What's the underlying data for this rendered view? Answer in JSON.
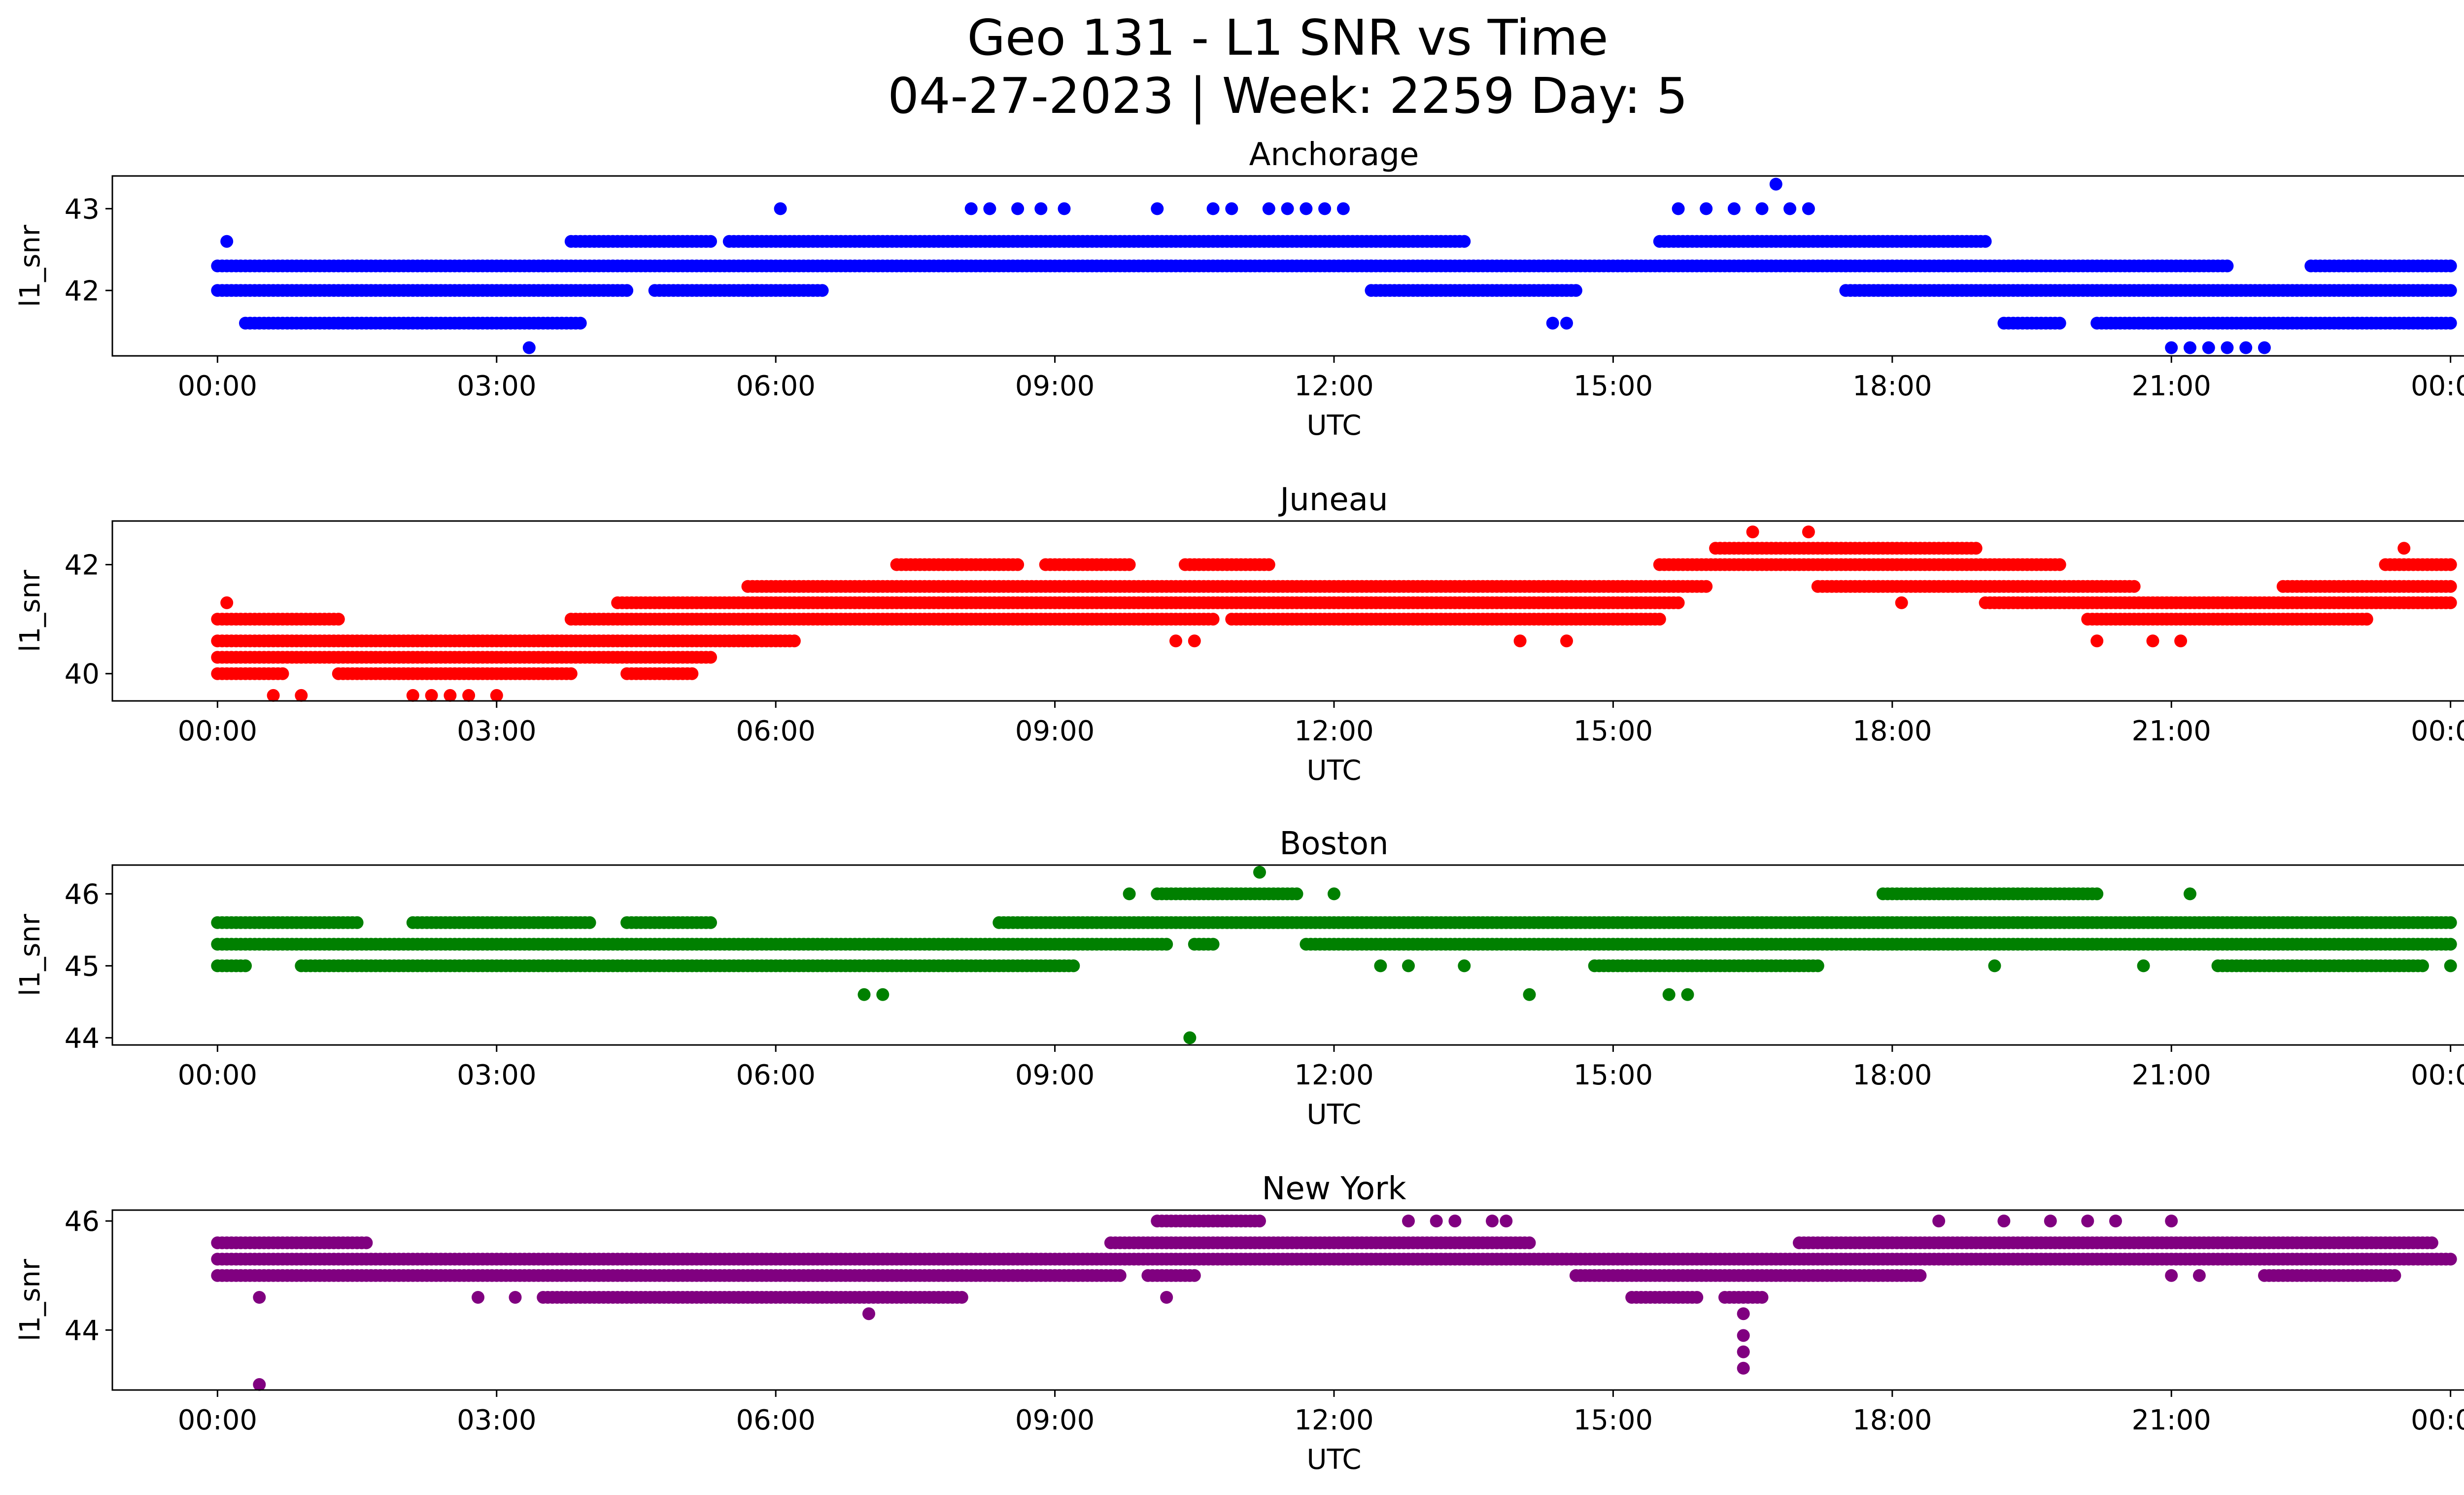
{
  "figure": {
    "title_line1": "Geo 131 - L1 SNR vs Time",
    "title_line2": "04-27-2023 | Week: 2259 Day: 5"
  },
  "chart_data": [
    {
      "type": "scatter",
      "title": "Anchorage",
      "xlabel": "UTC",
      "ylabel": "l1_snr",
      "color": "#0000ff",
      "x_tick_labels": [
        "00:00",
        "03:00",
        "06:00",
        "09:00",
        "12:00",
        "15:00",
        "18:00",
        "21:00",
        "00:00"
      ],
      "x_tick_hours": [
        0,
        3,
        6,
        9,
        12,
        15,
        18,
        21,
        24
      ],
      "xlim_hours": [
        -1.13,
        25.13
      ],
      "yticks": [
        42,
        43
      ],
      "ylim": [
        41.2,
        43.4
      ],
      "levels": [
        41.6,
        42.0,
        42.3,
        42.6
      ],
      "bands": [
        {
          "y": 42.0,
          "ranges": [
            [
              0,
              4.4
            ],
            [
              4.7,
              5.8
            ],
            [
              5.7,
              6.5
            ],
            [
              12.4,
              14.6
            ],
            [
              17.5,
              24
            ]
          ],
          "step": 0.05
        },
        {
          "y": 42.3,
          "ranges": [
            [
              0,
              3.5
            ],
            [
              3.5,
              12.4
            ],
            [
              12.4,
              17.5
            ],
            [
              17.5,
              21.6
            ],
            [
              22.5,
              24
            ]
          ],
          "step": 0.05
        },
        {
          "y": 42.6,
          "ranges": [
            [
              3.8,
              5.3
            ],
            [
              5.5,
              13.4
            ],
            [
              15.5,
              19.0
            ]
          ],
          "step": 0.05
        },
        {
          "y": 41.6,
          "ranges": [
            [
              0.3,
              3.9
            ],
            [
              19.2,
              19.8
            ],
            [
              20.2,
              24
            ]
          ],
          "step": 0.05
        }
      ],
      "sparse_points": [
        {
          "x": 0.1,
          "y": 42.6
        },
        {
          "x": 3.35,
          "y": 41.3
        },
        {
          "x": 6.05,
          "y": 43.0
        },
        {
          "x": 8.1,
          "y": 43.0
        },
        {
          "x": 8.3,
          "y": 43.0
        },
        {
          "x": 8.6,
          "y": 43.0
        },
        {
          "x": 8.85,
          "y": 43.0
        },
        {
          "x": 9.1,
          "y": 43.0
        },
        {
          "x": 10.1,
          "y": 43.0
        },
        {
          "x": 10.7,
          "y": 43.0
        },
        {
          "x": 10.9,
          "y": 43.0
        },
        {
          "x": 11.3,
          "y": 43.0
        },
        {
          "x": 11.5,
          "y": 43.0
        },
        {
          "x": 11.7,
          "y": 43.0
        },
        {
          "x": 11.9,
          "y": 43.0
        },
        {
          "x": 12.1,
          "y": 43.0
        },
        {
          "x": 14.35,
          "y": 41.6
        },
        {
          "x": 14.5,
          "y": 41.6
        },
        {
          "x": 15.7,
          "y": 43.0
        },
        {
          "x": 16.0,
          "y": 43.0
        },
        {
          "x": 16.3,
          "y": 43.0
        },
        {
          "x": 16.6,
          "y": 43.0
        },
        {
          "x": 16.75,
          "y": 43.3
        },
        {
          "x": 16.9,
          "y": 43.0
        },
        {
          "x": 17.1,
          "y": 43.0
        },
        {
          "x": 21.0,
          "y": 41.3
        },
        {
          "x": 21.2,
          "y": 41.3
        },
        {
          "x": 21.4,
          "y": 41.3
        },
        {
          "x": 21.6,
          "y": 41.3
        },
        {
          "x": 21.8,
          "y": 41.3
        },
        {
          "x": 22.0,
          "y": 41.3
        }
      ]
    },
    {
      "type": "scatter",
      "title": "Juneau",
      "xlabel": "UTC",
      "ylabel": "l1_snr",
      "color": "#ff0000",
      "x_tick_labels": [
        "00:00",
        "03:00",
        "06:00",
        "09:00",
        "12:00",
        "15:00",
        "18:00",
        "21:00",
        "00:00"
      ],
      "x_tick_hours": [
        0,
        3,
        6,
        9,
        12,
        15,
        18,
        21,
        24
      ],
      "xlim_hours": [
        -1.13,
        25.13
      ],
      "yticks": [
        40,
        42
      ],
      "ylim": [
        39.5,
        42.8
      ],
      "bands": [
        {
          "y": 40.0,
          "ranges": [
            [
              0,
              0.7
            ],
            [
              1.3,
              3.8
            ],
            [
              4.4,
              5.1
            ]
          ],
          "step": 0.05
        },
        {
          "y": 40.3,
          "ranges": [
            [
              0,
              5.3
            ]
          ],
          "step": 0.05
        },
        {
          "y": 40.6,
          "ranges": [
            [
              0,
              6.2
            ]
          ],
          "step": 0.05
        },
        {
          "y": 41.0,
          "ranges": [
            [
              0,
              1.3
            ],
            [
              3.8,
              10.7
            ],
            [
              10.9,
              15.5
            ],
            [
              20.1,
              23.1
            ]
          ],
          "step": 0.05
        },
        {
          "y": 41.3,
          "ranges": [
            [
              4.3,
              15.7
            ],
            [
              19.0,
              24
            ]
          ],
          "step": 0.05
        },
        {
          "y": 41.6,
          "ranges": [
            [
              5.7,
              16.0
            ],
            [
              17.2,
              20.6
            ],
            [
              22.2,
              24
            ]
          ],
          "step": 0.05
        },
        {
          "y": 42.0,
          "ranges": [
            [
              7.3,
              8.6
            ],
            [
              8.9,
              9.8
            ],
            [
              10.4,
              11.3
            ],
            [
              15.5,
              19.8
            ],
            [
              23.3,
              24
            ]
          ],
          "step": 0.05
        },
        {
          "y": 42.3,
          "ranges": [
            [
              16.1,
              18.9
            ]
          ],
          "step": 0.05
        }
      ],
      "sparse_points": [
        {
          "x": 0.1,
          "y": 41.3
        },
        {
          "x": 0.6,
          "y": 39.6
        },
        {
          "x": 0.9,
          "y": 39.6
        },
        {
          "x": 2.1,
          "y": 39.6
        },
        {
          "x": 2.3,
          "y": 39.6
        },
        {
          "x": 2.5,
          "y": 39.6
        },
        {
          "x": 2.7,
          "y": 39.6
        },
        {
          "x": 3.0,
          "y": 39.6
        },
        {
          "x": 10.3,
          "y": 40.6
        },
        {
          "x": 10.5,
          "y": 40.6
        },
        {
          "x": 14.0,
          "y": 40.6
        },
        {
          "x": 14.5,
          "y": 40.6
        },
        {
          "x": 16.5,
          "y": 42.6
        },
        {
          "x": 17.1,
          "y": 42.6
        },
        {
          "x": 18.1,
          "y": 41.3
        },
        {
          "x": 20.2,
          "y": 40.6
        },
        {
          "x": 20.8,
          "y": 40.6
        },
        {
          "x": 21.1,
          "y": 40.6
        },
        {
          "x": 23.5,
          "y": 42.3
        },
        {
          "x": 23.1,
          "y": 41.0
        }
      ]
    },
    {
      "type": "scatter",
      "title": "Boston",
      "xlabel": "UTC",
      "ylabel": "l1_snr",
      "color": "#008000",
      "x_tick_labels": [
        "00:00",
        "03:00",
        "06:00",
        "09:00",
        "12:00",
        "15:00",
        "18:00",
        "21:00",
        "00:00"
      ],
      "x_tick_hours": [
        0,
        3,
        6,
        9,
        12,
        15,
        18,
        21,
        24
      ],
      "xlim_hours": [
        -1.13,
        25.13
      ],
      "yticks": [
        44,
        45,
        46
      ],
      "ylim": [
        43.9,
        46.4
      ],
      "bands": [
        {
          "y": 45.3,
          "ranges": [
            [
              0,
              10.2
            ],
            [
              10.5,
              10.7
            ],
            [
              11.7,
              24
            ]
          ],
          "step": 0.05
        },
        {
          "y": 45.6,
          "ranges": [
            [
              0,
              1.5
            ],
            [
              2.1,
              4.0
            ],
            [
              4.4,
              5.3
            ],
            [
              8.4,
              24
            ]
          ],
          "step": 0.05
        },
        {
          "y": 45.0,
          "ranges": [
            [
              0,
              0.3
            ],
            [
              0.9,
              9.2
            ],
            [
              14.8,
              17.2
            ],
            [
              21.5,
              23.7
            ]
          ],
          "step": 0.05
        },
        {
          "y": 46.0,
          "ranges": [
            [
              10.1,
              11.6
            ],
            [
              17.9,
              20.2
            ]
          ],
          "step": 0.05
        }
      ],
      "sparse_points": [
        {
          "x": 6.95,
          "y": 44.6
        },
        {
          "x": 7.15,
          "y": 44.6
        },
        {
          "x": 10.45,
          "y": 44.0
        },
        {
          "x": 11.2,
          "y": 46.3
        },
        {
          "x": 9.8,
          "y": 46.0
        },
        {
          "x": 12.0,
          "y": 46.0
        },
        {
          "x": 12.5,
          "y": 45.0
        },
        {
          "x": 12.8,
          "y": 45.0
        },
        {
          "x": 13.4,
          "y": 45.0
        },
        {
          "x": 14.1,
          "y": 44.6
        },
        {
          "x": 15.6,
          "y": 44.6
        },
        {
          "x": 15.8,
          "y": 44.6
        },
        {
          "x": 19.1,
          "y": 45.0
        },
        {
          "x": 21.2,
          "y": 46.0
        },
        {
          "x": 20.7,
          "y": 45.0
        },
        {
          "x": 24.0,
          "y": 45.0
        }
      ]
    },
    {
      "type": "scatter",
      "title": "New York",
      "xlabel": "UTC",
      "ylabel": "l1_snr",
      "color": "#800080",
      "x_tick_labels": [
        "00:00",
        "03:00",
        "06:00",
        "09:00",
        "12:00",
        "15:00",
        "18:00",
        "21:00",
        "00:00"
      ],
      "x_tick_hours": [
        0,
        3,
        6,
        9,
        12,
        15,
        18,
        21,
        24
      ],
      "xlim_hours": [
        -1.13,
        25.13
      ],
      "yticks": [
        44,
        46
      ],
      "ylim": [
        42.9,
        46.2
      ],
      "bands": [
        {
          "y": 45.3,
          "ranges": [
            [
              0,
              24
            ]
          ],
          "step": 0.05
        },
        {
          "y": 45.0,
          "ranges": [
            [
              0,
              9.7
            ],
            [
              10.0,
              10.5
            ],
            [
              14.6,
              18.3
            ],
            [
              22.0,
              23.4
            ]
          ],
          "step": 0.05
        },
        {
          "y": 45.6,
          "ranges": [
            [
              0,
              1.6
            ],
            [
              9.6,
              14.1
            ],
            [
              17.0,
              23.8
            ]
          ],
          "step": 0.05
        },
        {
          "y": 44.6,
          "ranges": [
            [
              3.5,
              8.0
            ],
            [
              15.2,
              15.9
            ],
            [
              16.2,
              16.6
            ]
          ],
          "step": 0.05
        },
        {
          "y": 46.0,
          "ranges": [
            [
              10.1,
              11.2
            ]
          ],
          "step": 0.05
        }
      ],
      "sparse_points": [
        {
          "x": 0.45,
          "y": 43.0
        },
        {
          "x": 0.45,
          "y": 44.6
        },
        {
          "x": 2.8,
          "y": 44.6
        },
        {
          "x": 3.2,
          "y": 44.6
        },
        {
          "x": 7.0,
          "y": 44.3
        },
        {
          "x": 10.2,
          "y": 44.6
        },
        {
          "x": 12.8,
          "y": 46.0
        },
        {
          "x": 13.1,
          "y": 46.0
        },
        {
          "x": 13.3,
          "y": 46.0
        },
        {
          "x": 13.7,
          "y": 46.0
        },
        {
          "x": 13.85,
          "y": 46.0
        },
        {
          "x": 16.4,
          "y": 44.3
        },
        {
          "x": 16.4,
          "y": 43.9
        },
        {
          "x": 16.4,
          "y": 43.6
        },
        {
          "x": 16.4,
          "y": 43.3
        },
        {
          "x": 18.5,
          "y": 46.0
        },
        {
          "x": 19.2,
          "y": 46.0
        },
        {
          "x": 19.7,
          "y": 46.0
        },
        {
          "x": 20.1,
          "y": 46.0
        },
        {
          "x": 20.4,
          "y": 46.0
        },
        {
          "x": 21.0,
          "y": 46.0
        },
        {
          "x": 21.0,
          "y": 45.0
        },
        {
          "x": 21.3,
          "y": 45.0
        },
        {
          "x": 22.6,
          "y": 45.0
        }
      ]
    }
  ]
}
